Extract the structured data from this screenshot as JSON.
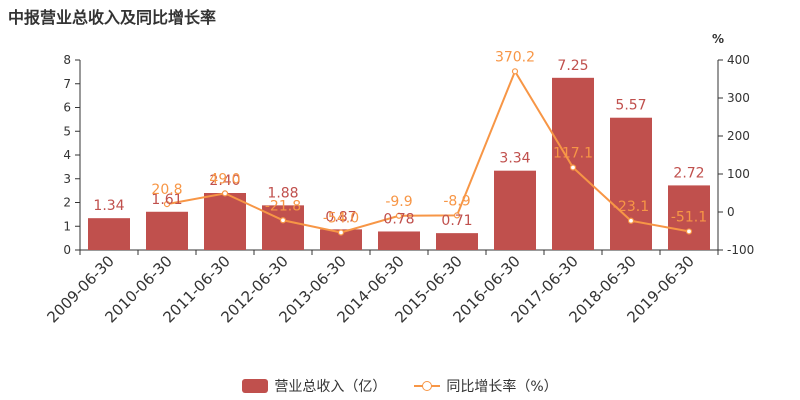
{
  "title": "中报营业总收入及同比增长率",
  "colors": {
    "bar": "#c0504d",
    "line": "#f79646",
    "axis": "#333333"
  },
  "chart_data": {
    "type": "bar",
    "title": "中报营业总收入及同比增长率",
    "categories": [
      "2009-06-30",
      "2010-06-30",
      "2011-06-30",
      "2012-06-30",
      "2013-06-30",
      "2014-06-30",
      "2015-06-30",
      "2016-06-30",
      "2017-06-30",
      "2018-06-30",
      "2019-06-30"
    ],
    "series": [
      {
        "name": "营业总收入（亿）",
        "type": "bar",
        "axis": "left",
        "values": [
          1.34,
          1.61,
          2.4,
          1.88,
          0.87,
          0.78,
          0.71,
          3.34,
          7.25,
          5.57,
          2.72
        ],
        "labels": [
          "1.34",
          "1.61",
          "2.40",
          "1.88",
          "0.87",
          "0.78",
          "0.71",
          "3.34",
          "7.25",
          "5.57",
          "2.72"
        ]
      },
      {
        "name": "同比增长率（%）",
        "type": "line",
        "axis": "right",
        "values": [
          null,
          20.8,
          49.0,
          -21.8,
          -54.0,
          -9.9,
          -8.9,
          370.2,
          117.1,
          -23.1,
          -51.1
        ],
        "labels": [
          "",
          "20.8",
          "49.0",
          "-21.8",
          "-54.0",
          "-9.9",
          "-8.9",
          "370.2",
          "117.1",
          "-23.1",
          "-51.1"
        ]
      }
    ],
    "y_left": {
      "range": [
        0,
        8
      ],
      "ticks": [
        "0",
        "1",
        "2",
        "3",
        "4",
        "5",
        "6",
        "7",
        "8"
      ]
    },
    "y_right": {
      "range": [
        -100,
        400
      ],
      "unit": "%",
      "ticks": [
        "-100",
        "0",
        "100",
        "200",
        "300",
        "400"
      ]
    },
    "grid": false,
    "legend": "bottom-center"
  }
}
